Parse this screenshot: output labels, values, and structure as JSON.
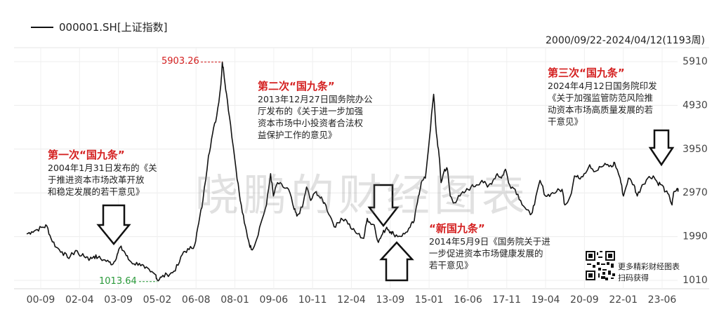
{
  "legend_label": "000001.SH[上证指数]",
  "date_range": "2000/09/22-2024/04/12(1193周)",
  "watermark": "晓鹏的财经图表",
  "qr_caption": "更多精彩财经图表\n扫码获得",
  "annotations": {
    "a1": {
      "title": "第一次“国九条”",
      "body": "2004年1月31日发布的《关\n于推进资本市场改革开放\n和稳定发展的若干意见》"
    },
    "a2": {
      "title": "第二次“国九条”",
      "body": "2013年12月27日国务院办公\n厅发布的《关于进一步加强\n资本市场中小投资者合法权\n益保护工作的意见》"
    },
    "a3": {
      "title": "“新国九条”",
      "body": "2014年5月9日《国务院关于进\n一步促进资本市场健康发展的\n若干意见》"
    },
    "a4": {
      "title": "第三次“国九条”",
      "body": "2024年4月12日国务院印发\n《关于加强监管防范风险推\n动资本市场高质量发展的若\n干意见》"
    }
  },
  "colors": {
    "line": "#111111",
    "grid": "#e6e6e6",
    "high_label": "#d42020",
    "low_label": "#2a9a3a",
    "title_red": "#d42020"
  },
  "chart_data": {
    "type": "line",
    "title": "",
    "series": [
      {
        "name": "000001.SH[上证指数]"
      }
    ],
    "x_tick_labels": [
      "00-09",
      "02-04",
      "03-09",
      "05-02",
      "06-08",
      "08-01",
      "09-06",
      "10-11",
      "12-04",
      "13-09",
      "15-01",
      "16-06",
      "17-11",
      "19-04",
      "20-09",
      "22-01",
      "23-06"
    ],
    "y_ticks": [
      1010,
      1990,
      2970,
      3950,
      4930,
      5910
    ],
    "y_tick_labels": [
      "1010",
      "1990",
      "2970",
      "3950",
      "4930",
      "5910"
    ],
    "ylim": [
      1010,
      5910
    ],
    "x_range": [
      "2000-09",
      "2024-04"
    ],
    "high_label": "5903.26",
    "low_label": "1013.64",
    "grid": true,
    "points": [
      [
        2000.72,
        2050
      ],
      [
        2000.9,
        2100
      ],
      [
        2001.1,
        2150
      ],
      [
        2001.3,
        2200
      ],
      [
        2001.45,
        2230
      ],
      [
        2001.6,
        1950
      ],
      [
        2001.8,
        1750
      ],
      [
        2002.0,
        1650
      ],
      [
        2002.2,
        1520
      ],
      [
        2002.4,
        1600
      ],
      [
        2002.5,
        1680
      ],
      [
        2002.7,
        1560
      ],
      [
        2002.9,
        1540
      ],
      [
        2003.0,
        1480
      ],
      [
        2003.15,
        1550
      ],
      [
        2003.3,
        1520
      ],
      [
        2003.5,
        1470
      ],
      [
        2003.7,
        1420
      ],
      [
        2003.85,
        1380
      ],
      [
        2004.0,
        1600
      ],
      [
        2004.1,
        1750
      ],
      [
        2004.25,
        1660
      ],
      [
        2004.4,
        1480
      ],
      [
        2004.6,
        1380
      ],
      [
        2004.8,
        1390
      ],
      [
        2005.0,
        1280
      ],
      [
        2005.2,
        1200
      ],
      [
        2005.4,
        1130
      ],
      [
        2005.45,
        1014
      ],
      [
        2005.6,
        1080
      ],
      [
        2005.8,
        1140
      ],
      [
        2006.0,
        1180
      ],
      [
        2006.2,
        1350
      ],
      [
        2006.4,
        1650
      ],
      [
        2006.6,
        1700
      ],
      [
        2006.8,
        1800
      ],
      [
        2006.95,
        2300
      ],
      [
        2007.1,
        2800
      ],
      [
        2007.3,
        3800
      ],
      [
        2007.45,
        4300
      ],
      [
        2007.6,
        4700
      ],
      [
        2007.75,
        5400
      ],
      [
        2007.8,
        5903
      ],
      [
        2007.85,
        5700
      ],
      [
        2007.95,
        5200
      ],
      [
        2008.1,
        4500
      ],
      [
        2008.3,
        3500
      ],
      [
        2008.45,
        2800
      ],
      [
        2008.6,
        2300
      ],
      [
        2008.75,
        1900
      ],
      [
        2008.85,
        1700
      ],
      [
        2009.0,
        1850
      ],
      [
        2009.2,
        2300
      ],
      [
        2009.4,
        2700
      ],
      [
        2009.55,
        3400
      ],
      [
        2009.65,
        2900
      ],
      [
        2009.8,
        3200
      ],
      [
        2010.0,
        3100
      ],
      [
        2010.2,
        3050
      ],
      [
        2010.4,
        2600
      ],
      [
        2010.5,
        2450
      ],
      [
        2010.7,
        2650
      ],
      [
        2010.85,
        3100
      ],
      [
        2011.0,
        2800
      ],
      [
        2011.2,
        3000
      ],
      [
        2011.35,
        2850
      ],
      [
        2011.5,
        2750
      ],
      [
        2011.7,
        2450
      ],
      [
        2011.9,
        2200
      ],
      [
        2012.1,
        2400
      ],
      [
        2012.3,
        2350
      ],
      [
        2012.5,
        2150
      ],
      [
        2012.7,
        2050
      ],
      [
        2012.92,
        1950
      ],
      [
        2013.05,
        2400
      ],
      [
        2013.15,
        2300
      ],
      [
        2013.3,
        2250
      ],
      [
        2013.45,
        1860
      ],
      [
        2013.6,
        2050
      ],
      [
        2013.75,
        2200
      ],
      [
        2013.9,
        2100
      ],
      [
        2014.0,
        2050
      ],
      [
        2014.2,
        2000
      ],
      [
        2014.4,
        2050
      ],
      [
        2014.6,
        2200
      ],
      [
        2014.75,
        2350
      ],
      [
        2014.9,
        2900
      ],
      [
        2015.0,
        3200
      ],
      [
        2015.15,
        3300
      ],
      [
        2015.3,
        4200
      ],
      [
        2015.45,
        5178
      ],
      [
        2015.55,
        4300
      ],
      [
        2015.65,
        3800
      ],
      [
        2015.72,
        3200
      ],
      [
        2015.85,
        3500
      ],
      [
        2015.95,
        3500
      ],
      [
        2016.05,
        2900
      ],
      [
        2016.2,
        2750
      ],
      [
        2016.4,
        2900
      ],
      [
        2016.6,
        3000
      ],
      [
        2016.8,
        3100
      ],
      [
        2017.0,
        3150
      ],
      [
        2017.2,
        3250
      ],
      [
        2017.4,
        3100
      ],
      [
        2017.6,
        3250
      ],
      [
        2017.75,
        3400
      ],
      [
        2017.9,
        3300
      ],
      [
        2018.05,
        3500
      ],
      [
        2018.2,
        3150
      ],
      [
        2018.4,
        3050
      ],
      [
        2018.6,
        2800
      ],
      [
        2018.8,
        2600
      ],
      [
        2018.95,
        2480
      ],
      [
        2019.1,
        2700
      ],
      [
        2019.3,
        3250
      ],
      [
        2019.5,
        2900
      ],
      [
        2019.7,
        2950
      ],
      [
        2019.9,
        3000
      ],
      [
        2020.1,
        3050
      ],
      [
        2020.2,
        2700
      ],
      [
        2020.4,
        2900
      ],
      [
        2020.55,
        3350
      ],
      [
        2020.7,
        3300
      ],
      [
        2020.9,
        3400
      ],
      [
        2021.1,
        3600
      ],
      [
        2021.3,
        3450
      ],
      [
        2021.5,
        3550
      ],
      [
        2021.7,
        3600
      ],
      [
        2021.9,
        3550
      ],
      [
        2022.0,
        3650
      ],
      [
        2022.2,
        3300
      ],
      [
        2022.32,
        2900
      ],
      [
        2022.5,
        3300
      ],
      [
        2022.7,
        3150
      ],
      [
        2022.82,
        2900
      ],
      [
        2023.0,
        3150
      ],
      [
        2023.2,
        3300
      ],
      [
        2023.4,
        3350
      ],
      [
        2023.55,
        3200
      ],
      [
        2023.7,
        3150
      ],
      [
        2023.85,
        3000
      ],
      [
        2024.0,
        2850
      ],
      [
        2024.08,
        2700
      ],
      [
        2024.15,
        3000
      ],
      [
        2024.3,
        3050
      ],
      [
        2024.28,
        3020
      ]
    ]
  }
}
